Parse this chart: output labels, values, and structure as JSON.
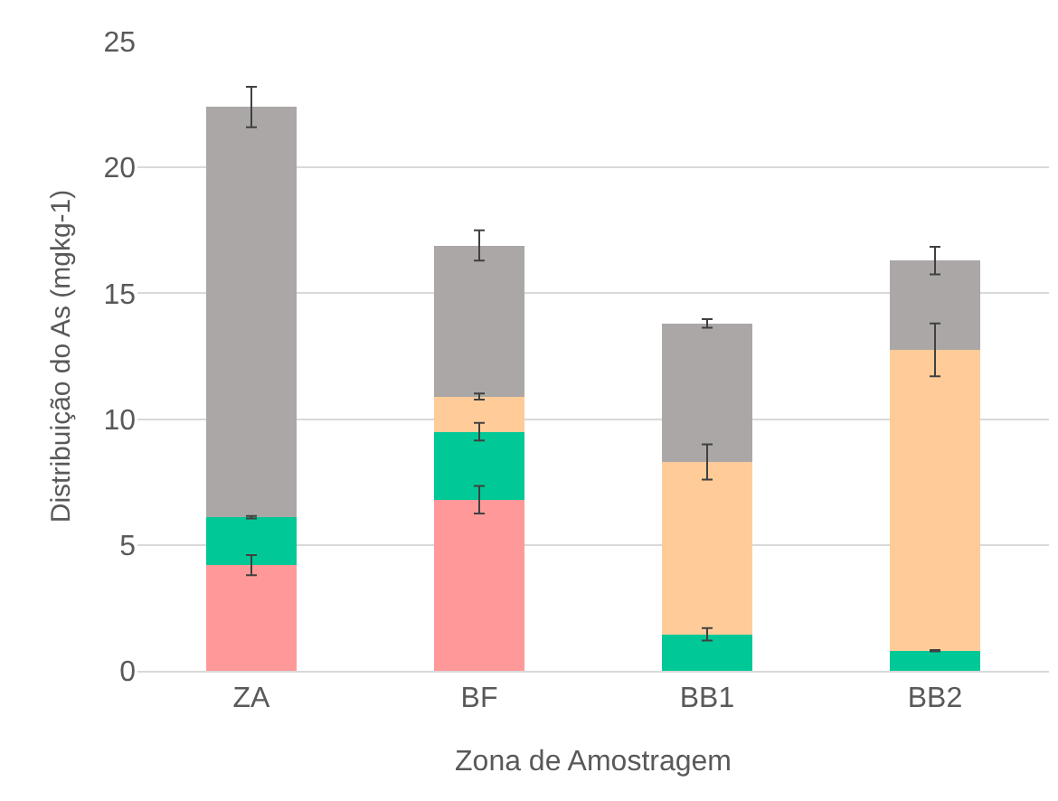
{
  "chart_data": {
    "type": "bar",
    "stacked": true,
    "xlabel": "Zona de Amostragem",
    "ylabel": "Distribuição do As (mgkg-1)",
    "categories": [
      "ZA",
      "BF",
      "BB1",
      "BB2"
    ],
    "series": [
      {
        "color": "#ff9999",
        "values": [
          4.2,
          6.8,
          null,
          null
        ],
        "errors": [
          0.4,
          0.55,
          null,
          null
        ]
      },
      {
        "color": "#00c896",
        "values": [
          1.9,
          2.7,
          1.45,
          0.8
        ],
        "errors": [
          0.05,
          0.35,
          0.25,
          0.03
        ]
      },
      {
        "color": "#ffcc99",
        "values": [
          null,
          1.4,
          6.85,
          11.95
        ],
        "errors": [
          null,
          0.12,
          0.7,
          1.05
        ]
      },
      {
        "color": "#aba7a7",
        "values": [
          16.3,
          6.0,
          5.5,
          3.55
        ],
        "errors": [
          0.8,
          0.6,
          0.17,
          0.55
        ]
      }
    ],
    "ylim": [
      0,
      25
    ],
    "yticks": [
      0,
      5,
      10,
      15,
      20,
      25
    ],
    "grid": "y"
  }
}
